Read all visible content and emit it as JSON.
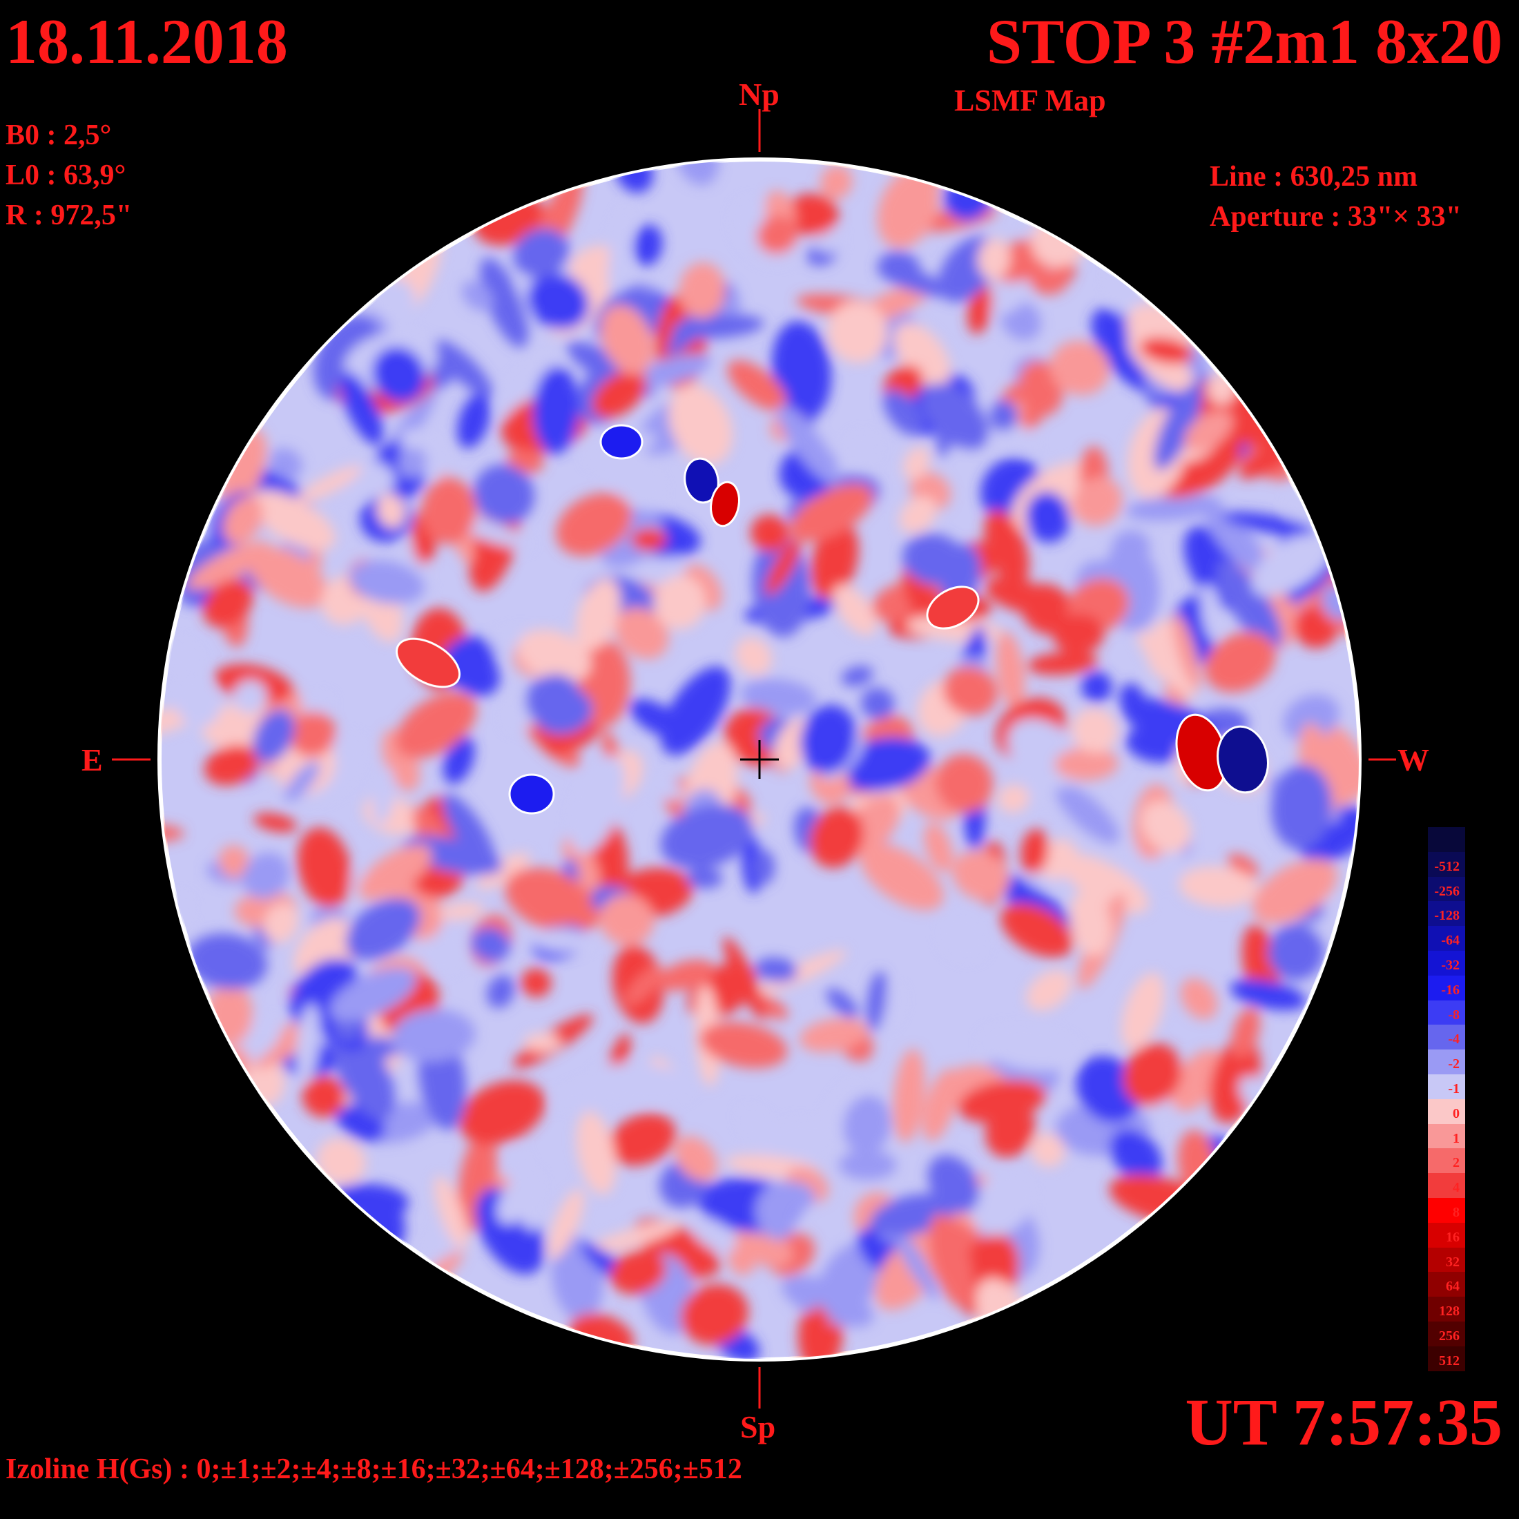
{
  "header": {
    "date": "18.11.2018",
    "title": "STOP 3 #2m1 8x20",
    "map_type": "LSMF  Map"
  },
  "ephemeris": {
    "b0": "B0 : 2,5°",
    "l0": "L0 : 63,9°",
    "radius": "R  : 972,5\""
  },
  "instrument": {
    "line": "Line :  630,25 nm",
    "aperture": "Aperture : 33\"× 33\""
  },
  "directions": {
    "north": "Np",
    "south": "Sp",
    "east": "E",
    "west": "W"
  },
  "time": "UT 7:57:35",
  "izoline": "Izoline H(Gs) : 0;±1;±2;±4;±8;±16;±32;±64;±128;±256;±512",
  "colors": {
    "text": "#ff1a1a",
    "background": "#000000",
    "disk_border": "#ffffff"
  },
  "color_scale": [
    {
      "label": "",
      "color": "#08083a"
    },
    {
      "label": "-512",
      "color": "#0a0a55"
    },
    {
      "label": "-256",
      "color": "#0c0c70"
    },
    {
      "label": "-128",
      "color": "#0e0e90"
    },
    {
      "label": "-64",
      "color": "#1010b4"
    },
    {
      "label": "-32",
      "color": "#1414d4"
    },
    {
      "label": "-16",
      "color": "#1c1cf0"
    },
    {
      "label": "-8",
      "color": "#3c3cf4"
    },
    {
      "label": "-4",
      "color": "#6666ee"
    },
    {
      "label": "-2",
      "color": "#9a9af4"
    },
    {
      "label": "-1",
      "color": "#c8c8f6"
    },
    {
      "label": "0",
      "color": "#fbc8c8"
    },
    {
      "label": "1",
      "color": "#f99898"
    },
    {
      "label": "2",
      "color": "#f66a6a"
    },
    {
      "label": "4",
      "color": "#f23c3c"
    },
    {
      "label": "8",
      "color": "#ff0000"
    },
    {
      "label": "16",
      "color": "#d80000"
    },
    {
      "label": "32",
      "color": "#b40000"
    },
    {
      "label": "64",
      "color": "#900000"
    },
    {
      "label": "128",
      "color": "#700000"
    },
    {
      "label": "256",
      "color": "#520000"
    },
    {
      "label": "512",
      "color": "#3c0000"
    }
  ]
}
